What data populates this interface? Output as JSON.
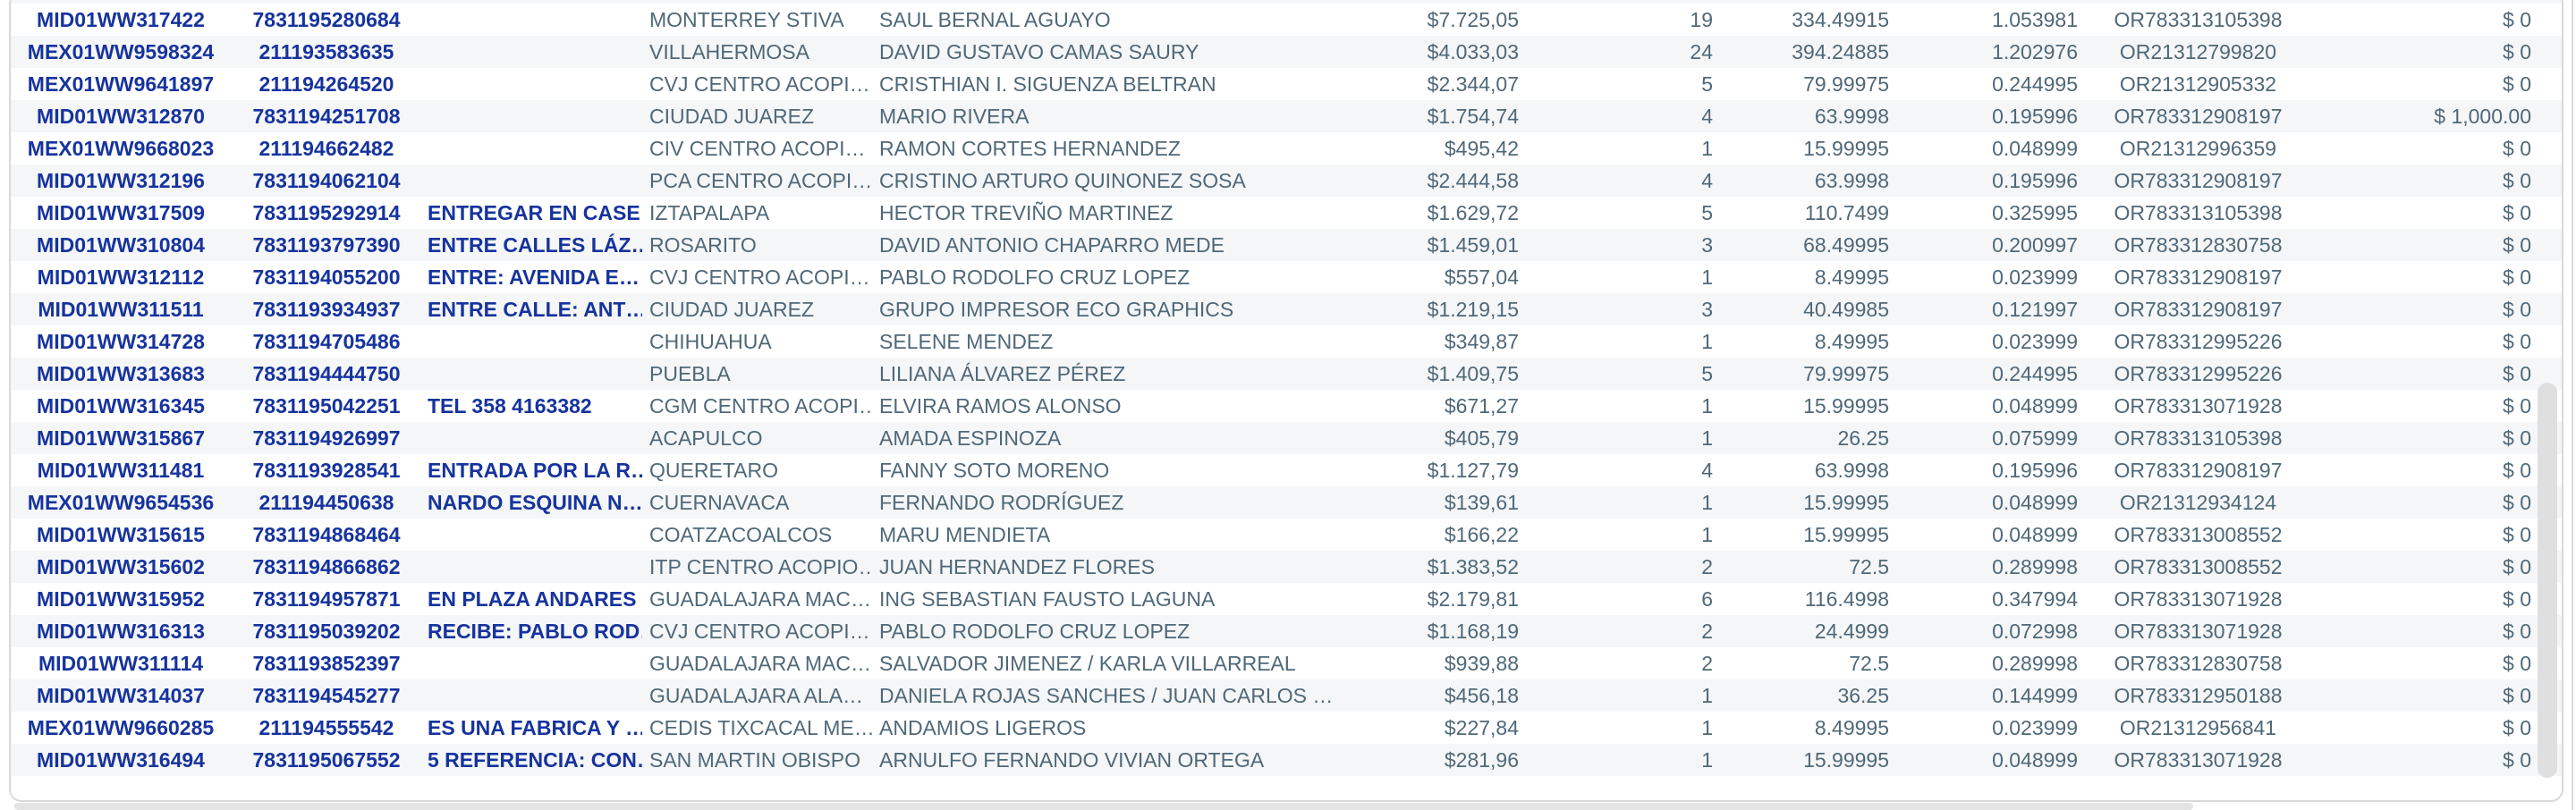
{
  "colors": {
    "link_blue": "#16339e",
    "text_slate": "#4f6878",
    "row_stripe": "#f5f6f8",
    "card_border": "#d9d9d9",
    "scrollbar_thumb": "#dfdfdf"
  },
  "table": {
    "partial_top_row": {
      "extra": "$ 0"
    },
    "rows": [
      {
        "id": "MID01WW317422",
        "phone": "7831195280684",
        "note": "",
        "city": "MONTERREY STIVA",
        "name": "SAUL BERNAL AGUAYO",
        "amount": "$7.725,05",
        "qty": "19",
        "weight": "334.49915",
        "coef": "1.053981",
        "or_number": "OR783313105398",
        "extra": "$ 0"
      },
      {
        "id": "MEX01WW9598324",
        "phone": "211193583635",
        "note": "",
        "city": "VILLAHERMOSA",
        "name": "DAVID GUSTAVO CAMAS SAURY",
        "amount": "$4.033,03",
        "qty": "24",
        "weight": "394.24885",
        "coef": "1.202976",
        "or_number": "OR21312799820",
        "extra": "$ 0"
      },
      {
        "id": "MEX01WW9641897",
        "phone": "211194264520",
        "note": "",
        "city": "CVJ CENTRO ACOPI…",
        "name": "CRISTHIAN I. SIGUENZA BELTRAN",
        "amount": "$2.344,07",
        "qty": "5",
        "weight": "79.99975",
        "coef": "0.244995",
        "or_number": "OR21312905332",
        "extra": "$ 0"
      },
      {
        "id": "MID01WW312870",
        "phone": "7831194251708",
        "note": "",
        "city": "CIUDAD JUAREZ",
        "name": "MARIO RIVERA",
        "amount": "$1.754,74",
        "qty": "4",
        "weight": "63.9998",
        "coef": "0.195996",
        "or_number": "OR783312908197",
        "extra": "$ 1,000.00"
      },
      {
        "id": "MEX01WW9668023",
        "phone": "211194662482",
        "note": "",
        "city": "CIV CENTRO ACOPI…",
        "name": "RAMON CORTES HERNANDEZ",
        "amount": "$495,42",
        "qty": "1",
        "weight": "15.99995",
        "coef": "0.048999",
        "or_number": "OR21312996359",
        "extra": "$ 0"
      },
      {
        "id": "MID01WW312196",
        "phone": "7831194062104",
        "note": "",
        "city": "PCA CENTRO ACOPI…",
        "name": "CRISTINO ARTURO QUINONEZ SOSA",
        "amount": "$2.444,58",
        "qty": "4",
        "weight": "63.9998",
        "coef": "0.195996",
        "or_number": "OR783312908197",
        "extra": "$ 0"
      },
      {
        "id": "MID01WW317509",
        "phone": "7831195292914",
        "note": "ENTREGAR EN CASE…",
        "city": "IZTAPALAPA",
        "name": "HECTOR TREVIÑO MARTINEZ",
        "amount": "$1.629,72",
        "qty": "5",
        "weight": "110.7499",
        "coef": "0.325995",
        "or_number": "OR783313105398",
        "extra": "$ 0"
      },
      {
        "id": "MID01WW310804",
        "phone": "7831193797390",
        "note": "ENTRE CALLES LÁZ…",
        "city": "ROSARITO",
        "name": "DAVID ANTONIO CHAPARRO MEDE",
        "amount": "$1.459,01",
        "qty": "3",
        "weight": "68.49995",
        "coef": "0.200997",
        "or_number": "OR783312830758",
        "extra": "$ 0"
      },
      {
        "id": "MID01WW312112",
        "phone": "7831194055200",
        "note": "ENTRE: AVENIDA E…",
        "city": "CVJ CENTRO ACOPI…",
        "name": "PABLO RODOLFO CRUZ LOPEZ",
        "amount": "$557,04",
        "qty": "1",
        "weight": "8.49995",
        "coef": "0.023999",
        "or_number": "OR783312908197",
        "extra": "$ 0"
      },
      {
        "id": "MID01WW311511",
        "phone": "7831193934937",
        "note": "ENTRE CALLE: ANT…",
        "city": "CIUDAD JUAREZ",
        "name": "GRUPO IMPRESOR ECO GRAPHICS",
        "amount": "$1.219,15",
        "qty": "3",
        "weight": "40.49985",
        "coef": "0.121997",
        "or_number": "OR783312908197",
        "extra": "$ 0"
      },
      {
        "id": "MID01WW314728",
        "phone": "7831194705486",
        "note": "",
        "city": "CHIHUAHUA",
        "name": "SELENE MENDEZ",
        "amount": "$349,87",
        "qty": "1",
        "weight": "8.49995",
        "coef": "0.023999",
        "or_number": "OR783312995226",
        "extra": "$ 0"
      },
      {
        "id": "MID01WW313683",
        "phone": "7831194444750",
        "note": "",
        "city": "PUEBLA",
        "name": "LILIANA ÁLVAREZ PÉREZ",
        "amount": "$1.409,75",
        "qty": "5",
        "weight": "79.99975",
        "coef": "0.244995",
        "or_number": "OR783312995226",
        "extra": "$ 0"
      },
      {
        "id": "MID01WW316345",
        "phone": "7831195042251",
        "note": "TEL 358 4163382",
        "city": "CGM CENTRO ACOPI…",
        "name": "ELVIRA RAMOS ALONSO",
        "amount": "$671,27",
        "qty": "1",
        "weight": "15.99995",
        "coef": "0.048999",
        "or_number": "OR783313071928",
        "extra": "$ 0"
      },
      {
        "id": "MID01WW315867",
        "phone": "7831194926997",
        "note": "",
        "city": "ACAPULCO",
        "name": "AMADA ESPINOZA",
        "amount": "$405,79",
        "qty": "1",
        "weight": "26.25",
        "coef": "0.075999",
        "or_number": "OR783313105398",
        "extra": "$ 0"
      },
      {
        "id": "MID01WW311481",
        "phone": "7831193928541",
        "note": "ENTRADA POR LA R…",
        "city": "QUERETARO",
        "name": "FANNY SOTO MORENO",
        "amount": "$1.127,79",
        "qty": "4",
        "weight": "63.9998",
        "coef": "0.195996",
        "or_number": "OR783312908197",
        "extra": "$ 0"
      },
      {
        "id": "MEX01WW9654536",
        "phone": "211194450638",
        "note": "NARDO ESQUINA N…",
        "city": "CUERNAVACA",
        "name": "FERNANDO RODRÍGUEZ",
        "amount": "$139,61",
        "qty": "1",
        "weight": "15.99995",
        "coef": "0.048999",
        "or_number": "OR21312934124",
        "extra": "$ 0"
      },
      {
        "id": "MID01WW315615",
        "phone": "7831194868464",
        "note": "",
        "city": "COATZACOALCOS",
        "name": "MARU MENDIETA",
        "amount": "$166,22",
        "qty": "1",
        "weight": "15.99995",
        "coef": "0.048999",
        "or_number": "OR783313008552",
        "extra": "$ 0"
      },
      {
        "id": "MID01WW315602",
        "phone": "7831194866862",
        "note": "",
        "city": "ITP CENTRO ACOPIO…",
        "name": "JUAN HERNANDEZ FLORES",
        "amount": "$1.383,52",
        "qty": "2",
        "weight": "72.5",
        "coef": "0.289998",
        "or_number": "OR783313008552",
        "extra": "$ 0"
      },
      {
        "id": "MID01WW315952",
        "phone": "7831194957871",
        "note": "EN PLAZA ANDARES",
        "city": "GUADALAJARA MAC…",
        "name": "ING SEBASTIAN FAUSTO LAGUNA",
        "amount": "$2.179,81",
        "qty": "6",
        "weight": "116.4998",
        "coef": "0.347994",
        "or_number": "OR783313071928",
        "extra": "$ 0"
      },
      {
        "id": "MID01WW316313",
        "phone": "7831195039202",
        "note": "RECIBE: PABLO ROD…",
        "city": "CVJ CENTRO ACOPI…",
        "name": "PABLO RODOLFO CRUZ LOPEZ",
        "amount": "$1.168,19",
        "qty": "2",
        "weight": "24.4999",
        "coef": "0.072998",
        "or_number": "OR783313071928",
        "extra": "$ 0"
      },
      {
        "id": "MID01WW311114",
        "phone": "7831193852397",
        "note": "",
        "city": "GUADALAJARA MAC…",
        "name": "SALVADOR JIMENEZ / KARLA VILLARREAL",
        "amount": "$939,88",
        "qty": "2",
        "weight": "72.5",
        "coef": "0.289998",
        "or_number": "OR783312830758",
        "extra": "$ 0"
      },
      {
        "id": "MID01WW314037",
        "phone": "7831194545277",
        "note": "",
        "city": "GUADALAJARA ALA…",
        "name": "DANIELA ROJAS SANCHES / JUAN CARLOS …",
        "amount": "$456,18",
        "qty": "1",
        "weight": "36.25",
        "coef": "0.144999",
        "or_number": "OR783312950188",
        "extra": "$ 0"
      },
      {
        "id": "MEX01WW9660285",
        "phone": "211194555542",
        "note": "ES UNA FABRICA Y …",
        "city": "CEDIS TIXCACAL ME…",
        "name": "ANDAMIOS LIGEROS",
        "amount": "$227,84",
        "qty": "1",
        "weight": "8.49995",
        "coef": "0.023999",
        "or_number": "OR21312956841",
        "extra": "$ 0"
      },
      {
        "id": "MID01WW316494",
        "phone": "7831195067552",
        "note": "5 REFERENCIA: CON…",
        "city": "SAN MARTIN OBISPO",
        "name": "ARNULFO FERNANDO VIVIAN ORTEGA",
        "amount": "$281,96",
        "qty": "1",
        "weight": "15.99995",
        "coef": "0.048999",
        "or_number": "OR783313071928",
        "extra": "$ 0"
      }
    ]
  }
}
